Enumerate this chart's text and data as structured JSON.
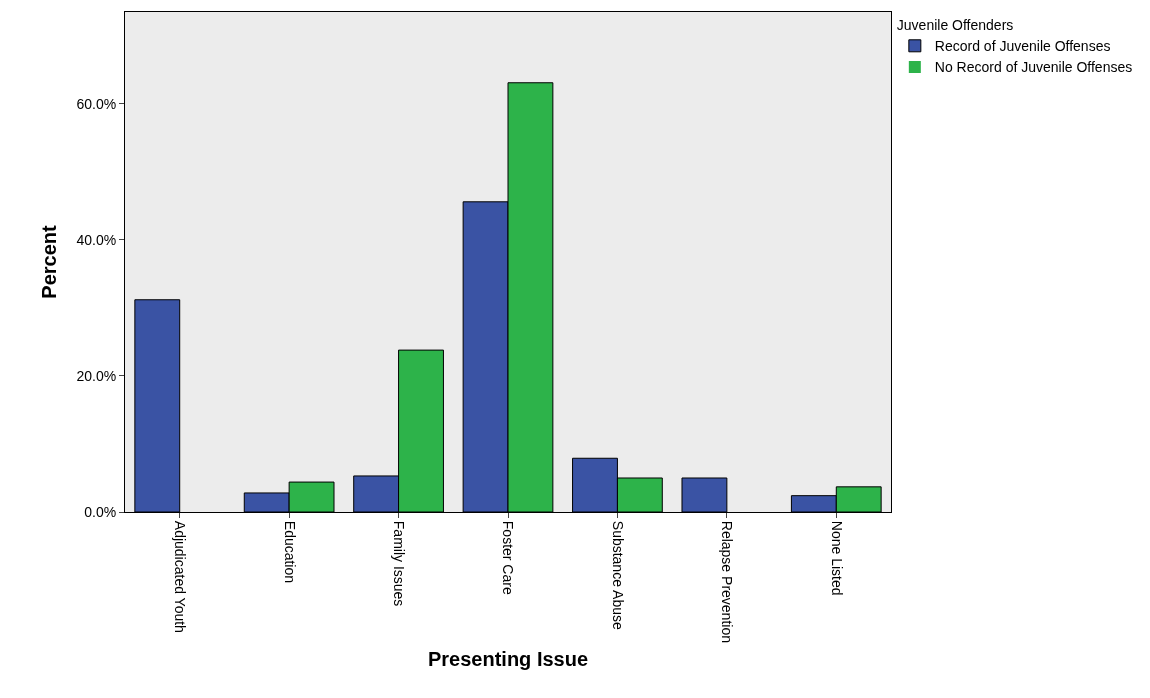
{
  "chart_data": {
    "type": "bar",
    "xlabel": "Presenting Issue",
    "ylabel": "Percent",
    "legend_title": "Juvenile Offenders",
    "legend": "top right",
    "categories": [
      "Adjudicated Youth",
      "Education",
      "Family Issues",
      "Foster Care",
      "Substance Abuse",
      "Relapse Prevention",
      "None Listed"
    ],
    "series": [
      {
        "name": "Record of Juvenile Offenses",
        "color": "#3a53a4",
        "values": [
          31.2,
          2.8,
          5.3,
          45.6,
          7.9,
          5.0,
          2.4
        ]
      },
      {
        "name": "No Record of Juvenile Offenses",
        "color": "#2db34a",
        "values": [
          0,
          4.4,
          23.8,
          63.1,
          5.0,
          0,
          3.7
        ]
      }
    ],
    "ylim": [
      0,
      73.5
    ],
    "yticks": [
      {
        "value": 0,
        "label": "0.0%"
      },
      {
        "value": 20,
        "label": "20.0%"
      },
      {
        "value": 40,
        "label": "40.0%"
      },
      {
        "value": 60,
        "label": "60.0%"
      }
    ],
    "grid": false
  }
}
